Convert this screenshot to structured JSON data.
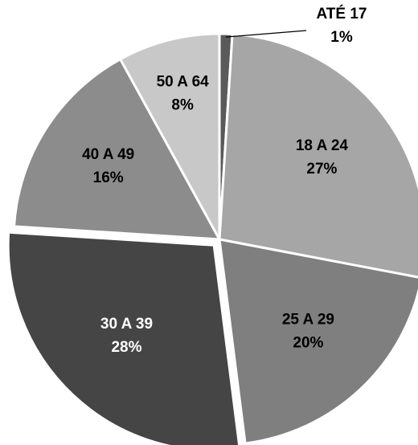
{
  "chart_data": {
    "type": "pie",
    "slices": [
      {
        "label": "ATÉ 17",
        "percent_label": "1%",
        "value": 1,
        "color": "#5a5a5a",
        "text_color": "#000000"
      },
      {
        "label": "18 A 24",
        "percent_label": "27%",
        "value": 27,
        "color": "#a6a6a6",
        "text_color": "#000000"
      },
      {
        "label": "25 A 29",
        "percent_label": "20%",
        "value": 20,
        "color": "#7f7f7f",
        "text_color": "#000000"
      },
      {
        "label": "30 A 39",
        "percent_label": "28%",
        "value": 28,
        "color": "#454545",
        "text_color": "#ffffff"
      },
      {
        "label": "40 A 49",
        "percent_label": "16%",
        "value": 16,
        "color": "#8c8c8c",
        "text_color": "#000000"
      },
      {
        "label": "50 A 64",
        "percent_label": "8%",
        "value": 8,
        "color": "#c8c8c8",
        "text_color": "#000000"
      }
    ],
    "exploded_slice": "30 A 39",
    "start_angle": "12 o'clock, clockwise",
    "legend": "none",
    "title": ""
  }
}
